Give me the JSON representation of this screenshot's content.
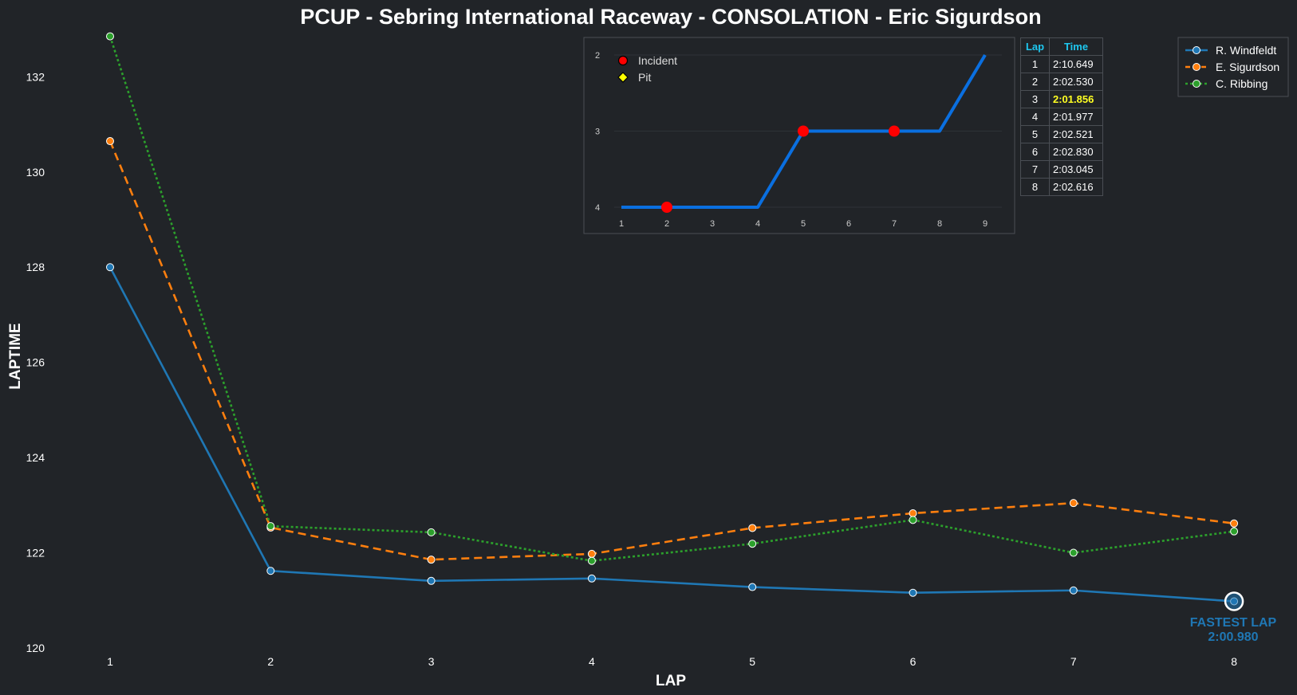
{
  "chart_data": [
    {
      "type": "line",
      "title": "PCUP - Sebring International Raceway - CONSOLATION - Eric Sigurdson",
      "xlabel": "LAP",
      "ylabel": "LAPTIME",
      "x": [
        1,
        2,
        3,
        4,
        5,
        6,
        7,
        8
      ],
      "xlim": [
        0.6,
        8.4
      ],
      "ylim": [
        120,
        133
      ],
      "yticks": [
        120,
        122,
        124,
        126,
        128,
        130,
        132
      ],
      "grid": false,
      "legend_position": "top-right",
      "series": [
        {
          "name": "R. Windfeldt",
          "color": "#1f77b4",
          "style": "solid",
          "values": [
            128.0,
            121.62,
            121.41,
            121.46,
            121.28,
            121.16,
            121.21,
            120.98
          ]
        },
        {
          "name": "E. Sigurdson",
          "color": "#ff7f0e",
          "style": "dashed",
          "values": [
            130.649,
            122.53,
            121.856,
            121.977,
            122.521,
            122.83,
            123.045,
            122.616
          ]
        },
        {
          "name": "C. Ribbing",
          "color": "#2ca02c",
          "style": "dotted",
          "values": [
            132.85,
            122.56,
            122.43,
            121.83,
            122.19,
            122.69,
            122.0,
            122.45
          ]
        }
      ],
      "annotation": {
        "text_line1": "FASTEST LAP",
        "text_line2": "2:00.980",
        "series": "R. Windfeldt",
        "x": 8,
        "y": 120.98
      }
    },
    {
      "type": "line",
      "title": "",
      "x": [
        1,
        2,
        3,
        4,
        5,
        6,
        7,
        8,
        9
      ],
      "values": [
        4,
        4,
        4,
        4,
        3,
        3,
        3,
        3,
        2
      ],
      "ylim": [
        4.2,
        1.9
      ],
      "yticks": [
        2,
        3,
        4
      ],
      "xticks": [
        1,
        2,
        3,
        4,
        5,
        6,
        7,
        8,
        9
      ],
      "line_color": "#0a6fe0",
      "legend": [
        {
          "label": "Incident",
          "color": "#ff0000",
          "marker": "circle"
        },
        {
          "label": "Pit",
          "color": "#ffff00",
          "marker": "diamond"
        }
      ],
      "incidents": [
        2,
        5,
        7
      ],
      "pits": []
    }
  ],
  "lap_table": {
    "header_lap": "Lap",
    "header_time": "Time",
    "best_lap": 3,
    "rows": [
      {
        "lap": "1",
        "time": "2:10.649"
      },
      {
        "lap": "2",
        "time": "2:02.530"
      },
      {
        "lap": "3",
        "time": "2:01.856"
      },
      {
        "lap": "4",
        "time": "2:01.977"
      },
      {
        "lap": "5",
        "time": "2:02.521"
      },
      {
        "lap": "6",
        "time": "2:02.830"
      },
      {
        "lap": "7",
        "time": "2:03.045"
      },
      {
        "lap": "8",
        "time": "2:02.616"
      }
    ]
  },
  "colors": {
    "background": "#212428",
    "table_header": "#1ec8f0",
    "best_time": "#ffff22"
  }
}
